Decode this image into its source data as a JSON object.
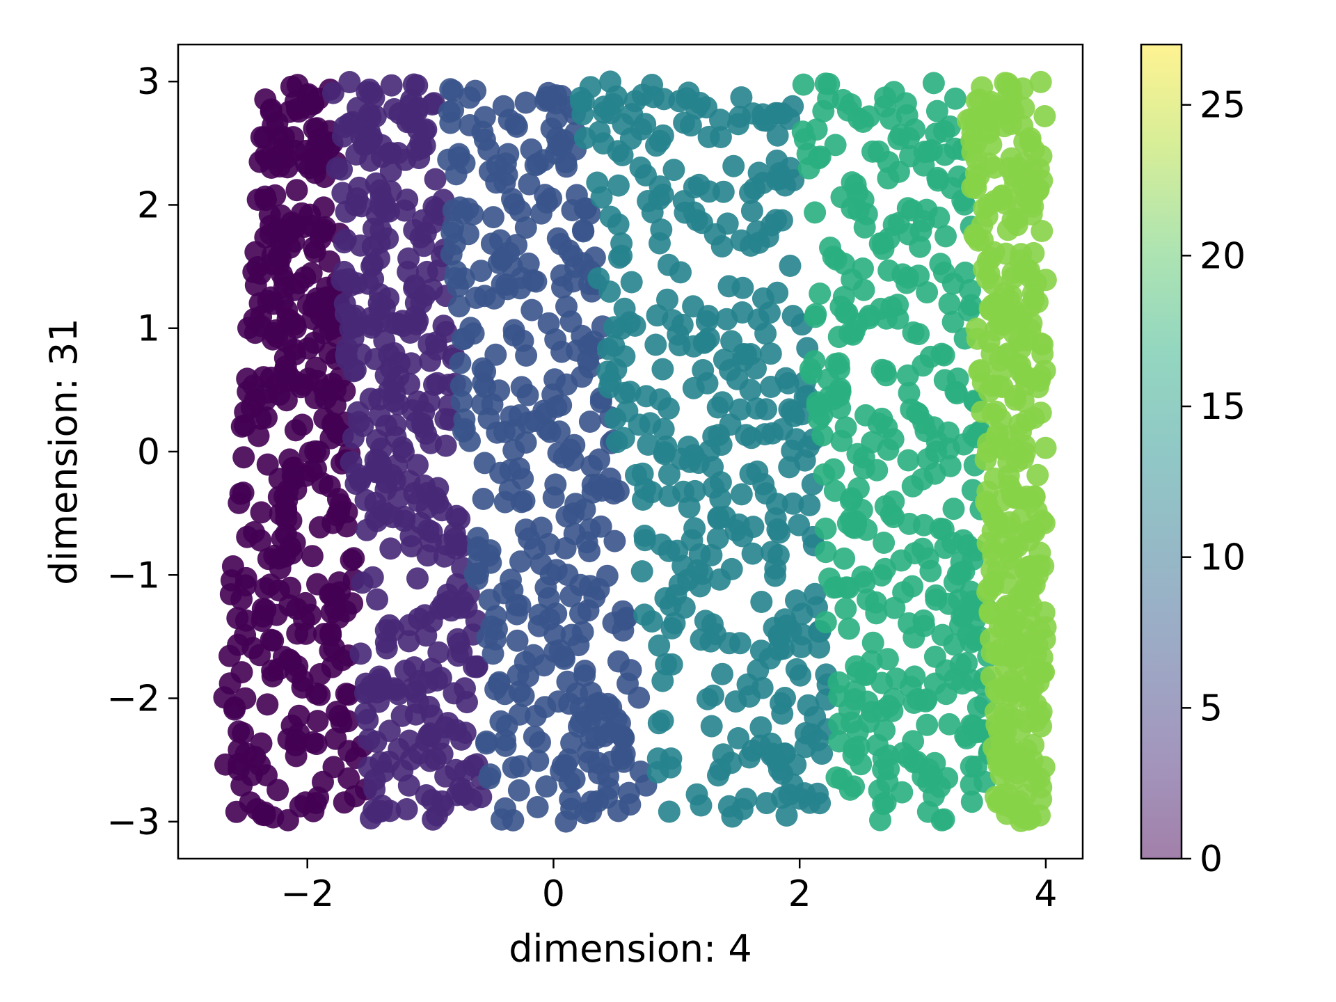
{
  "chart_data": {
    "type": "scatter",
    "title": "",
    "xlabel": "dimension: 4",
    "ylabel": "dimension: 31",
    "xlim": [
      -3.05,
      4.3
    ],
    "ylim": [
      -3.3,
      3.3
    ],
    "x_ticks": [
      -2,
      0,
      2,
      4
    ],
    "y_ticks": [
      -3,
      -2,
      -1,
      0,
      1,
      2,
      3
    ],
    "x_tick_labels": [
      "−2",
      "0",
      "2",
      "4"
    ],
    "y_tick_labels": [
      "−3",
      "−2",
      "−1",
      "0",
      "1",
      "2",
      "3"
    ],
    "grid": false,
    "legend": "none",
    "point_alpha": 0.5,
    "data_extent": {
      "x": [
        -2.75,
        4.0
      ],
      "y": [
        -3.0,
        3.0
      ]
    },
    "color_value_bands": [
      {
        "x_at_y_bottom": [
          -2.75,
          -1.5
        ],
        "x_at_y_top": [
          -2.35,
          -1.8
        ],
        "value": 0
      },
      {
        "x_at_y_bottom": [
          -1.5,
          -0.5
        ],
        "x_at_y_top": [
          -1.8,
          -0.95
        ],
        "value": 3
      },
      {
        "x_at_y_bottom": [
          -0.5,
          0.8
        ],
        "x_at_y_top": [
          -0.95,
          0.2
        ],
        "value": 7
      },
      {
        "x_at_y_bottom": [
          0.8,
          2.3
        ],
        "x_at_y_top": [
          0.2,
          1.95
        ],
        "value": 12
      },
      {
        "x_at_y_bottom": [
          2.3,
          3.6
        ],
        "x_at_y_top": [
          1.95,
          3.35
        ],
        "value": 17
      },
      {
        "x_at_y_bottom": [
          3.6,
          4.0
        ],
        "x_at_y_top": [
          3.35,
          4.0
        ],
        "value": 22
      }
    ],
    "colorbar": {
      "label": "",
      "range": [
        0,
        27
      ],
      "ticks": [
        0,
        5,
        10,
        15,
        20,
        25
      ],
      "tick_labels": [
        "0",
        "5",
        "10",
        "15",
        "20",
        "25"
      ],
      "colormap": "viridis"
    },
    "colors": {
      "axes": "#000000",
      "background": "#ffffff",
      "viridis_stops": [
        "#440154",
        "#472d7b",
        "#3b528b",
        "#2c728e",
        "#21918c",
        "#28ae80",
        "#5ec962",
        "#addc30",
        "#fde725"
      ]
    }
  }
}
